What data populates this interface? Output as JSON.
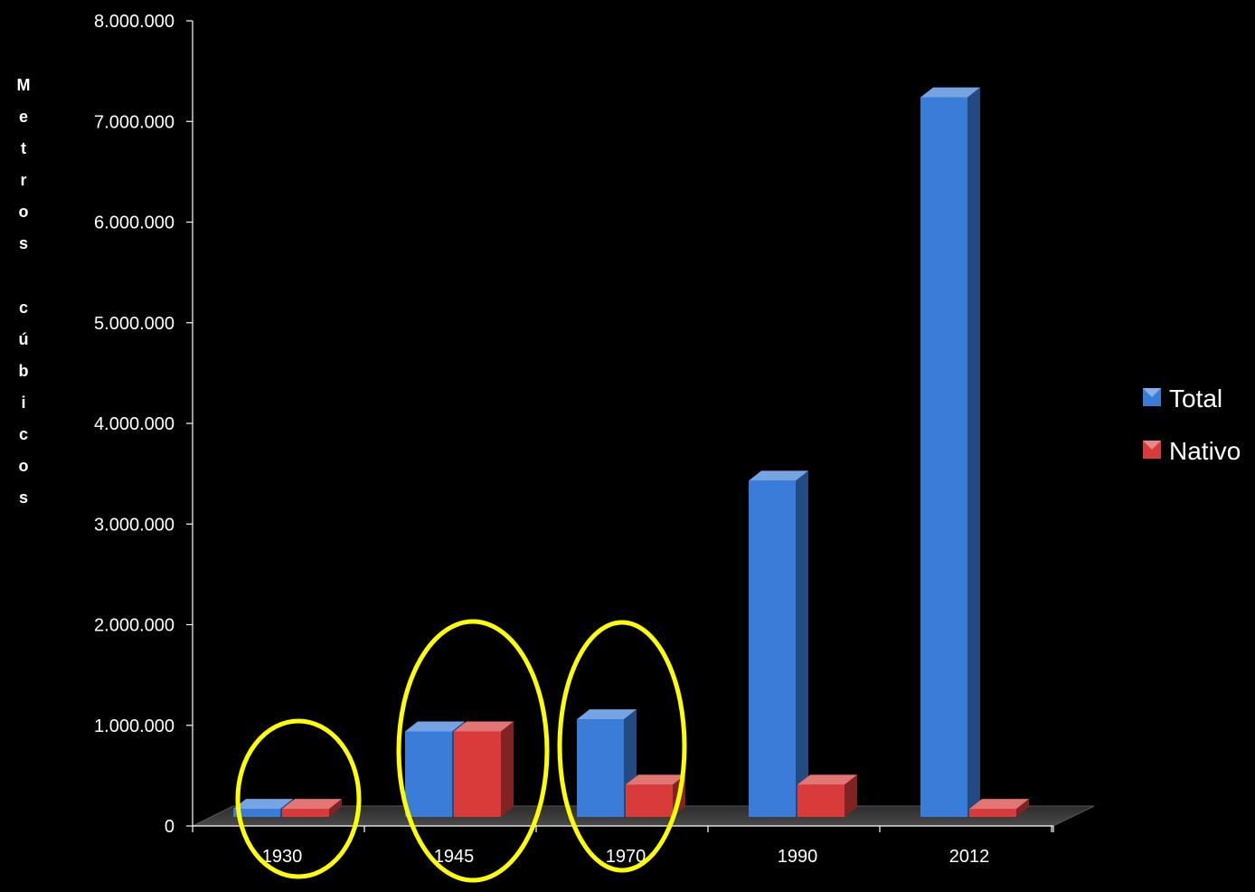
{
  "chart_data": {
    "type": "bar",
    "title": "",
    "xlabel": "",
    "ylabel": "Metros cúbicos",
    "categories": [
      "1930",
      "1945",
      "1970",
      "1990",
      "2012"
    ],
    "series": [
      {
        "name": "Total",
        "color": "#3a7dd8",
        "values": [
          80000,
          850000,
          970000,
          3340000,
          7150000
        ]
      },
      {
        "name": "Nativo",
        "color": "#d93a3a",
        "values": [
          80000,
          850000,
          320000,
          320000,
          80000
        ]
      }
    ],
    "ylim": [
      0,
      8000000
    ],
    "yticks": [
      {
        "value": 0,
        "label": "0"
      },
      {
        "value": 1000000,
        "label": "1.000.000"
      },
      {
        "value": 2000000,
        "label": "2.000.000"
      },
      {
        "value": 3000000,
        "label": "3.000.000"
      },
      {
        "value": 4000000,
        "label": "4.000.000"
      },
      {
        "value": 5000000,
        "label": "5.000.000"
      },
      {
        "value": 6000000,
        "label": "6.000.000"
      },
      {
        "value": 7000000,
        "label": "7.000.000"
      },
      {
        "value": 8000000,
        "label": "8.000.000"
      }
    ],
    "grid": false,
    "legend_position": "right",
    "style": "3d-clustered-column",
    "highlights": {
      "shape": "ellipse",
      "color": "#ffff00",
      "categories": [
        "1930",
        "1945",
        "1970"
      ]
    }
  }
}
